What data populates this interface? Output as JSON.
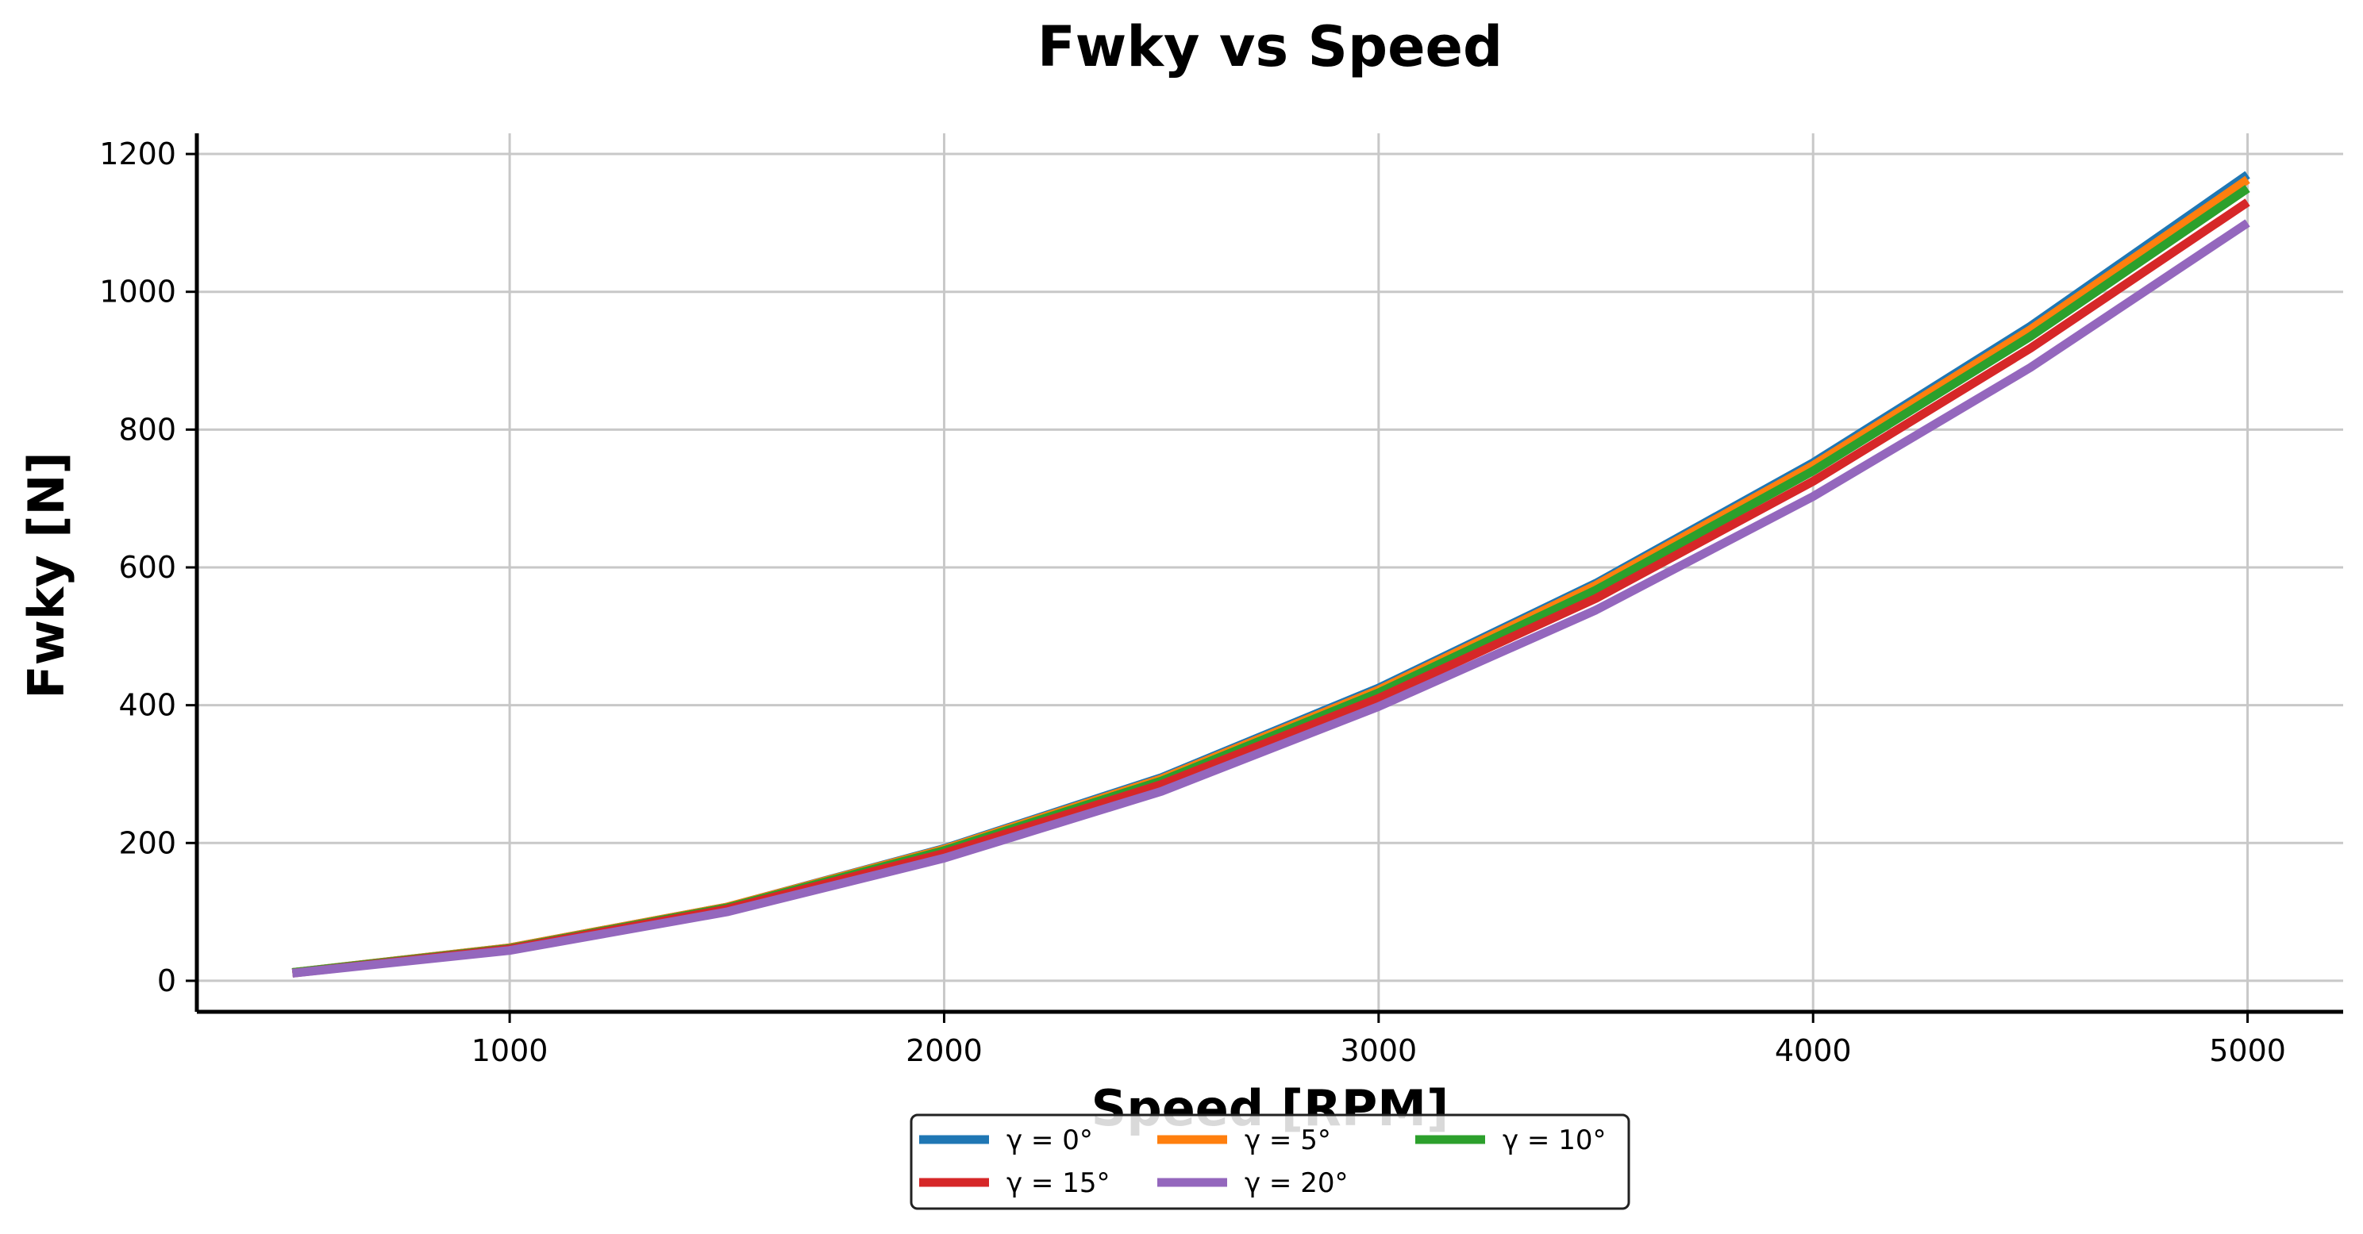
{
  "chart_data": {
    "type": "line",
    "title": "Fwky vs Speed",
    "xlabel": "Speed [RPM]",
    "ylabel": "Fwky [N]",
    "x": [
      500,
      1000,
      1500,
      2000,
      2500,
      3000,
      3500,
      4000,
      4500,
      5000
    ],
    "xlim": [
      280,
      5220
    ],
    "ylim": [
      -45,
      1230
    ],
    "xticks": [
      1000,
      2000,
      3000,
      4000,
      5000
    ],
    "yticks": [
      0,
      200,
      400,
      600,
      800,
      1000,
      1200
    ],
    "grid": true,
    "legend_position": "bottom-center",
    "legend_columns": 3,
    "series": [
      {
        "name": "γ = 0°",
        "color": "#1f77b4",
        "values": [
          12,
          48,
          107,
          192,
          295,
          425,
          577,
          752,
          950,
          1170
        ]
      },
      {
        "name": "γ = 5°",
        "color": "#ff7f0e",
        "values": [
          12,
          48,
          107,
          191,
          293,
          422,
          574,
          748,
          945,
          1163
        ]
      },
      {
        "name": "γ = 10°",
        "color": "#2ca02c",
        "values": [
          12,
          47,
          106,
          189,
          290,
          418,
          567,
          740,
          935,
          1150
        ]
      },
      {
        "name": "γ = 15°",
        "color": "#d62728",
        "values": [
          11,
          46,
          104,
          185,
          285,
          410,
          555,
          725,
          918,
          1130
        ]
      },
      {
        "name": "γ = 20°",
        "color": "#9467bd",
        "values": [
          11,
          44,
          100,
          178,
          275,
          398,
          538,
          703,
          890,
          1100
        ]
      }
    ]
  }
}
